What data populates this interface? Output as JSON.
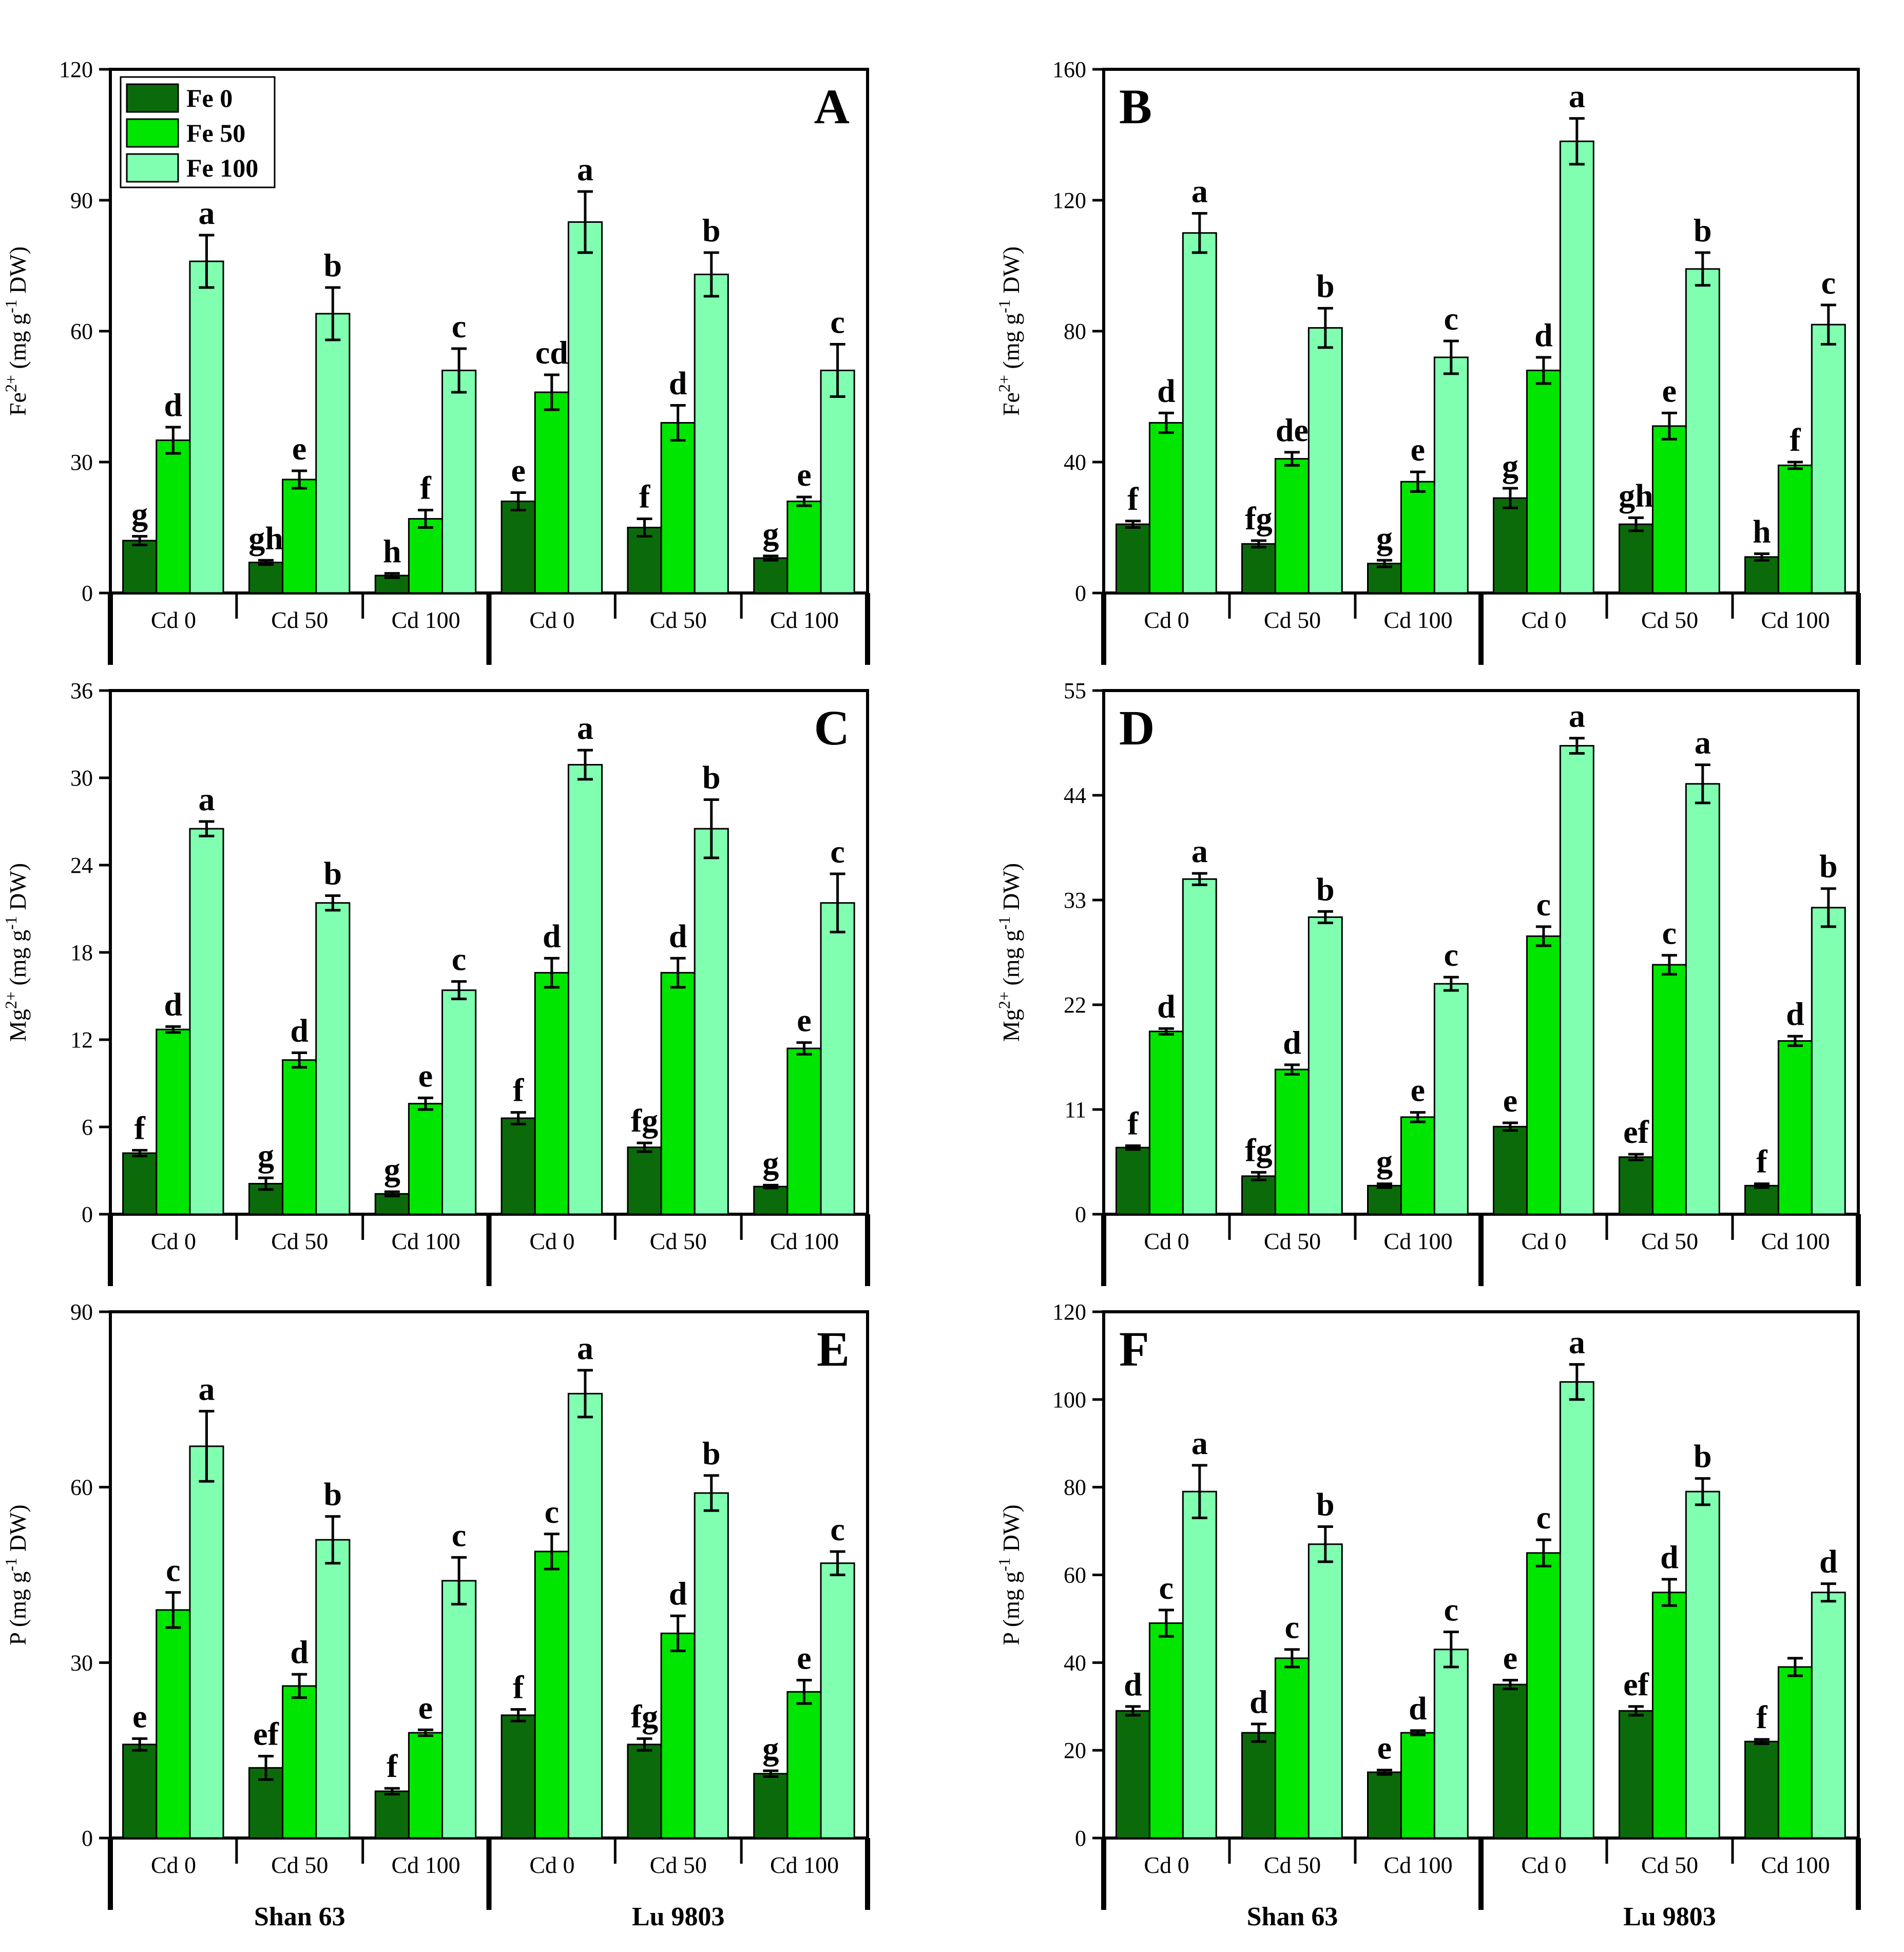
{
  "colors": {
    "Fe 0": "#0b6b0b",
    "Fe 50": "#00e600",
    "Fe 100": "#80ffb0"
  },
  "legend": [
    "Fe 0",
    "Fe 50",
    "Fe 100"
  ],
  "groups": [
    "Shan 63",
    "Lu 9803"
  ],
  "categories": [
    "Cd 0",
    "Cd 50",
    "Cd 100",
    "Cd 0",
    "Cd 50",
    "Cd 100"
  ],
  "chart_data": [
    {
      "type": "bar",
      "panel": "A",
      "ylabel": {
        "base": "Fe",
        "sup": "2+",
        "unit_pre": " (mg g",
        "unit_sup": "-1",
        "unit_post": " DW)"
      },
      "ylim": [
        0,
        120
      ],
      "yticks": [
        0,
        30,
        60,
        90,
        120
      ],
      "show_legend": true,
      "series": [
        {
          "name": "Fe 0",
          "values": [
            12,
            7,
            4,
            21,
            15,
            8
          ],
          "errors": [
            1,
            0.5,
            0.5,
            2,
            2,
            0.5
          ],
          "letters": [
            "g",
            "gh",
            "h",
            "e",
            "f",
            "g"
          ]
        },
        {
          "name": "Fe 50",
          "values": [
            35,
            26,
            17,
            46,
            39,
            21
          ],
          "errors": [
            3,
            2,
            2,
            4,
            4,
            1
          ],
          "letters": [
            "d",
            "e",
            "f",
            "cd",
            "d",
            "e"
          ]
        },
        {
          "name": "Fe 100",
          "values": [
            76,
            64,
            51,
            85,
            73,
            51
          ],
          "errors": [
            6,
            6,
            5,
            7,
            5,
            6
          ],
          "letters": [
            "a",
            "b",
            "c",
            "a",
            "b",
            "c"
          ]
        }
      ]
    },
    {
      "type": "bar",
      "panel": "B",
      "ylabel": {
        "base": "Fe",
        "sup": "2+",
        "unit_pre": " (mg g",
        "unit_sup": "-1",
        "unit_post": " DW)"
      },
      "ylim": [
        0,
        160
      ],
      "yticks": [
        0,
        40,
        80,
        120,
        160
      ],
      "show_legend": false,
      "series": [
        {
          "name": "Fe 0",
          "values": [
            21,
            15,
            9,
            29,
            21,
            11
          ],
          "errors": [
            1,
            1,
            1,
            3,
            2,
            1
          ],
          "letters": [
            "f",
            "fg",
            "g",
            "g",
            "gh",
            "h"
          ]
        },
        {
          "name": "Fe 50",
          "values": [
            52,
            41,
            34,
            68,
            51,
            39
          ],
          "errors": [
            3,
            2,
            3,
            4,
            4,
            1
          ],
          "letters": [
            "d",
            "de",
            "e",
            "d",
            "e",
            "f"
          ]
        },
        {
          "name": "Fe 100",
          "values": [
            110,
            81,
            72,
            138,
            99,
            82
          ],
          "errors": [
            6,
            6,
            5,
            7,
            5,
            6
          ],
          "letters": [
            "a",
            "b",
            "c",
            "a",
            "b",
            "c"
          ]
        }
      ]
    },
    {
      "type": "bar",
      "panel": "C",
      "ylabel": {
        "base": "Mg",
        "sup": "2+",
        "unit_pre": " (mg g",
        "unit_sup": "-1",
        "unit_post": " DW)"
      },
      "ylim": [
        0,
        36
      ],
      "yticks": [
        0,
        6,
        12,
        18,
        24,
        30,
        36
      ],
      "show_legend": false,
      "series": [
        {
          "name": "Fe 0",
          "values": [
            4.2,
            2.1,
            1.4,
            6.6,
            4.6,
            1.9
          ],
          "errors": [
            0.2,
            0.4,
            0.15,
            0.4,
            0.3,
            0.1
          ],
          "letters": [
            "f",
            "g",
            "g",
            "f",
            "fg",
            "g"
          ]
        },
        {
          "name": "Fe 50",
          "values": [
            12.7,
            10.6,
            7.6,
            16.6,
            16.6,
            11.4
          ],
          "errors": [
            0.2,
            0.5,
            0.4,
            1.0,
            1.0,
            0.4
          ],
          "letters": [
            "d",
            "d",
            "e",
            "d",
            "d",
            "e"
          ]
        },
        {
          "name": "Fe 100",
          "values": [
            26.5,
            21.4,
            15.4,
            30.9,
            26.5,
            21.4
          ],
          "errors": [
            0.5,
            0.5,
            0.6,
            1.0,
            2.0,
            2.0
          ],
          "letters": [
            "a",
            "b",
            "c",
            "a",
            "b",
            "c"
          ]
        }
      ]
    },
    {
      "type": "bar",
      "panel": "D",
      "ylabel": {
        "base": "Mg",
        "sup": "2+",
        "unit_pre": " (mg g",
        "unit_sup": "-1",
        "unit_post": " DW)"
      },
      "ylim": [
        0,
        55
      ],
      "yticks": [
        0,
        11,
        22,
        33,
        44,
        55
      ],
      "show_legend": false,
      "series": [
        {
          "name": "Fe 0",
          "values": [
            7,
            4,
            3,
            9.2,
            6,
            3
          ],
          "errors": [
            0.2,
            0.4,
            0.2,
            0.4,
            0.3,
            0.2
          ],
          "letters": [
            "f",
            "fg",
            "g",
            "e",
            "ef",
            "f"
          ]
        },
        {
          "name": "Fe 50",
          "values": [
            19.2,
            15.2,
            10.2,
            29.2,
            26.2,
            18.2
          ],
          "errors": [
            0.3,
            0.5,
            0.5,
            1.0,
            1.0,
            0.5
          ],
          "letters": [
            "d",
            "d",
            "e",
            "c",
            "c",
            "d"
          ]
        },
        {
          "name": "Fe 100",
          "values": [
            35.2,
            31.2,
            24.2,
            49.2,
            45.2,
            32.2
          ],
          "errors": [
            0.6,
            0.6,
            0.7,
            0.8,
            2.0,
            2.0
          ],
          "letters": [
            "a",
            "b",
            "c",
            "a",
            "a",
            "b"
          ]
        }
      ]
    },
    {
      "type": "bar",
      "panel": "E",
      "ylabel": {
        "base": "P",
        "sup": "",
        "unit_pre": " (mg g",
        "unit_sup": "-1",
        "unit_post": " DW)"
      },
      "ylim": [
        0,
        90
      ],
      "yticks": [
        0,
        30,
        60,
        90
      ],
      "show_legend": false,
      "series": [
        {
          "name": "Fe 0",
          "values": [
            16,
            12,
            8,
            21,
            16,
            11
          ],
          "errors": [
            1,
            2,
            0.5,
            1,
            1,
            0.5
          ],
          "letters": [
            "e",
            "ef",
            "f",
            "f",
            "fg",
            "g"
          ]
        },
        {
          "name": "Fe 50",
          "values": [
            39,
            26,
            18,
            49,
            35,
            25
          ],
          "errors": [
            3,
            2,
            0.5,
            3,
            3,
            2
          ],
          "letters": [
            "c",
            "d",
            "e",
            "c",
            "d",
            "e"
          ]
        },
        {
          "name": "Fe 100",
          "values": [
            67,
            51,
            44,
            76,
            59,
            47
          ],
          "errors": [
            6,
            4,
            4,
            4,
            3,
            2
          ],
          "letters": [
            "a",
            "b",
            "c",
            "a",
            "b",
            "c"
          ]
        }
      ]
    },
    {
      "type": "bar",
      "panel": "F",
      "ylabel": {
        "base": "P",
        "sup": "",
        "unit_pre": " (mg g",
        "unit_sup": "-1",
        "unit_post": " DW)"
      },
      "ylim": [
        0,
        120
      ],
      "yticks": [
        0,
        20,
        40,
        60,
        80,
        100,
        120
      ],
      "show_legend": false,
      "series": [
        {
          "name": "Fe 0",
          "values": [
            29,
            24,
            15,
            35,
            29,
            22
          ],
          "errors": [
            1,
            2,
            0.5,
            1,
            1,
            0.5
          ],
          "letters": [
            "d",
            "d",
            "e",
            "e",
            "ef",
            "f"
          ]
        },
        {
          "name": "Fe 50",
          "values": [
            49,
            41,
            24,
            65,
            56,
            39
          ],
          "errors": [
            3,
            2,
            0.5,
            3,
            3,
            2
          ],
          "letters": [
            "c",
            "c",
            "d",
            "c",
            "d",
            ""
          ]
        },
        {
          "name": "Fe 100",
          "values": [
            79,
            67,
            43,
            104,
            79,
            56
          ],
          "errors": [
            6,
            4,
            4,
            4,
            3,
            2
          ],
          "letters": [
            "a",
            "b",
            "c",
            "a",
            "b",
            "d"
          ]
        }
      ]
    }
  ]
}
